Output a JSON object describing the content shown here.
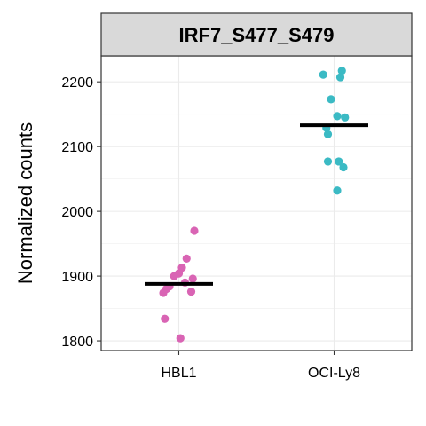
{
  "chart_data": {
    "type": "scatter",
    "facet_title": "IRF7_S477_S479",
    "xlabel": "",
    "ylabel": "Normalized counts",
    "categories": [
      "HBL1",
      "OCI-Ly8"
    ],
    "ylim": [
      1785,
      2240
    ],
    "yticks": [
      1800,
      1900,
      2000,
      2100,
      2200
    ],
    "grid": true,
    "series": [
      {
        "category": "HBL1",
        "color": "#d964b4",
        "median": 1888,
        "points": [
          {
            "jitter": 0.1,
            "y": 1970
          },
          {
            "jitter": 0.05,
            "y": 1927
          },
          {
            "jitter": 0.02,
            "y": 1913
          },
          {
            "jitter": 0.09,
            "y": 1896
          },
          {
            "jitter": 0.0,
            "y": 1904
          },
          {
            "jitter": -0.03,
            "y": 1900
          },
          {
            "jitter": 0.04,
            "y": 1890
          },
          {
            "jitter": -0.06,
            "y": 1884
          },
          {
            "jitter": -0.08,
            "y": 1880
          },
          {
            "jitter": 0.08,
            "y": 1876
          },
          {
            "jitter": -0.1,
            "y": 1874
          },
          {
            "jitter": -0.09,
            "y": 1834
          },
          {
            "jitter": 0.01,
            "y": 1804
          }
        ]
      },
      {
        "category": "OCI-Ly8",
        "color": "#3bbac4",
        "median": 2133,
        "points": [
          {
            "jitter": -0.07,
            "y": 2211
          },
          {
            "jitter": 0.05,
            "y": 2217
          },
          {
            "jitter": 0.04,
            "y": 2207
          },
          {
            "jitter": -0.02,
            "y": 2173
          },
          {
            "jitter": 0.02,
            "y": 2147
          },
          {
            "jitter": 0.07,
            "y": 2145
          },
          {
            "jitter": -0.05,
            "y": 2129
          },
          {
            "jitter": -0.04,
            "y": 2119
          },
          {
            "jitter": -0.04,
            "y": 2077
          },
          {
            "jitter": 0.03,
            "y": 2077
          },
          {
            "jitter": 0.06,
            "y": 2068
          },
          {
            "jitter": 0.02,
            "y": 2032
          }
        ]
      }
    ]
  }
}
